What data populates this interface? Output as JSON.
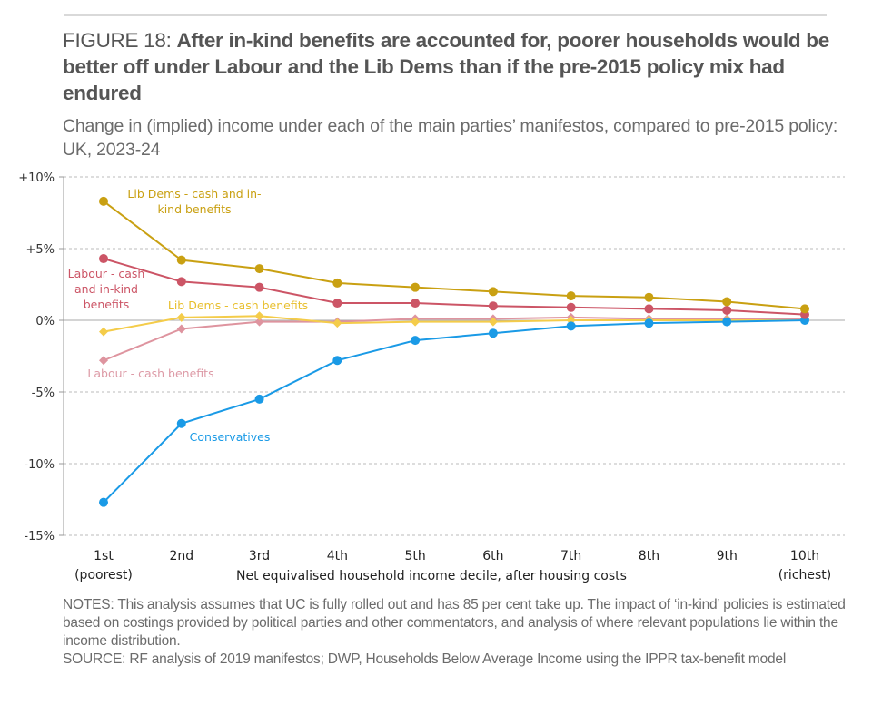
{
  "header": {
    "figure_label": "FIGURE 18: ",
    "title": "After in-kind benefits are accounted for, poorer households would be better off under Labour and the Lib Dems than if the pre-2015 policy mix had endured",
    "subtitle": "Change in (implied) income under each of the main parties’ manifestos, compared to pre-2015 policy: UK, 2023-24"
  },
  "chart_data": {
    "type": "line",
    "title": "Change in (implied) income under each of the main parties’ manifestos, compared to pre-2015 policy: UK, 2023-24",
    "xlabel": "Net equivalised household income decile, after housing costs",
    "ylabel": "",
    "categories": [
      "1st",
      "2nd",
      "3rd",
      "4th",
      "5th",
      "6th",
      "7th",
      "8th",
      "9th",
      "10th"
    ],
    "category_sublabels": {
      "0": "(poorest)",
      "9": "(richest)"
    },
    "ylim": [
      -15,
      10
    ],
    "yticks": [
      10,
      5,
      0,
      -5,
      -10,
      -15
    ],
    "ytick_labels": [
      "+10%",
      "+5%",
      "0%",
      "-5%",
      "-10%",
      "-15%"
    ],
    "grid": true,
    "legend": "inline-annotations",
    "series": [
      {
        "name": "Lib Dems - cash and in-kind benefits",
        "label_lines": [
          "Lib Dems - cash and in-",
          "kind benefits"
        ],
        "color": "#c9a012",
        "marker": "circle",
        "values": [
          8.3,
          4.2,
          3.6,
          2.6,
          2.3,
          2.0,
          1.7,
          1.6,
          1.3,
          0.8
        ]
      },
      {
        "name": "Labour - cash and in-kind benefits",
        "label_lines": [
          "Labour - cash",
          "and in-kind",
          "benefits"
        ],
        "color": "#cc5566",
        "marker": "circle",
        "values": [
          4.3,
          2.7,
          2.3,
          1.2,
          1.2,
          1.0,
          0.9,
          0.8,
          0.7,
          0.4
        ]
      },
      {
        "name": "Lib Dems - cash benefits",
        "label_lines": [
          "Lib Dems - cash benefits"
        ],
        "color": "#f4cc4a",
        "marker": "diamond",
        "values": [
          -0.8,
          0.2,
          0.3,
          -0.2,
          -0.1,
          -0.1,
          0.0,
          0.0,
          0.0,
          0.0
        ]
      },
      {
        "name": "Labour - cash benefits",
        "label_lines": [
          "Labour - cash benefits"
        ],
        "color": "#de949f",
        "marker": "diamond",
        "values": [
          -2.8,
          -0.6,
          -0.1,
          -0.1,
          0.1,
          0.1,
          0.2,
          0.1,
          0.1,
          0.1
        ]
      },
      {
        "name": "Conservatives",
        "label_lines": [
          "Conservatives"
        ],
        "color": "#1a9ae6",
        "marker": "circle",
        "values": [
          -12.7,
          -7.2,
          -5.5,
          -2.8,
          -1.4,
          -0.9,
          -0.4,
          -0.2,
          -0.1,
          0.0
        ]
      }
    ]
  },
  "notes": {
    "notes_text": "NOTES: This analysis assumes that UC is fully rolled out and has 85 per cent take up. The impact of ‘in-kind’ policies is estimated based on costings provided by political parties and other commentators, and analysis of where relevant populations lie within the income distribution.",
    "source_text": "SOURCE: RF analysis of 2019 manifestos; DWP, Households Below Average Income using the IPPR tax-benefit model"
  }
}
